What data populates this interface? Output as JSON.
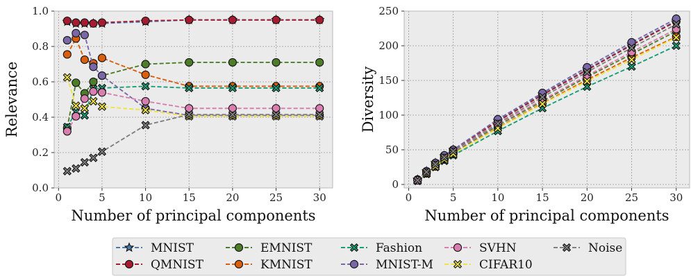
{
  "legend": {
    "entries": [
      {
        "label": "MNIST",
        "color": "#4a79aa",
        "marker": "star"
      },
      {
        "label": "QMNIST",
        "color": "#a51c30",
        "marker": "circle"
      },
      {
        "label": "EMNIST",
        "color": "#4e7d2a",
        "marker": "circle"
      },
      {
        "label": "KMNIST",
        "color": "#d95f0e",
        "marker": "circle"
      },
      {
        "label": "Fashion",
        "color": "#1b9e77",
        "marker": "x"
      },
      {
        "label": "MNIST-M",
        "color": "#7a68a6",
        "marker": "circle"
      },
      {
        "label": "SVHN",
        "color": "#d97fb0",
        "marker": "circle"
      },
      {
        "label": "CIFAR10",
        "color": "#f0e442",
        "marker": "x"
      },
      {
        "label": "Noise",
        "color": "#808080",
        "marker": "x"
      }
    ]
  },
  "chart_data": [
    {
      "type": "line",
      "xlabel": "Number of principal components",
      "ylabel": "Relevance",
      "xlim": [
        -0.5,
        31.5
      ],
      "ylim": [
        0.0,
        1.0
      ],
      "xticks": [
        0,
        5,
        10,
        15,
        20,
        25,
        30
      ],
      "yticks": [
        0.0,
        0.2,
        0.4,
        0.6,
        0.8,
        1.0
      ],
      "yticklabels": [
        "0.0",
        "0.2",
        "0.4",
        "0.6",
        "0.8",
        "1.0"
      ],
      "grid": true,
      "x": [
        1,
        2,
        3,
        4,
        5,
        10,
        15,
        20,
        25,
        30
      ],
      "series": [
        {
          "name": "MNIST",
          "values": [
            0.94,
            0.93,
            0.93,
            0.93,
            0.93,
            0.94,
            0.95,
            0.95,
            0.95,
            0.95
          ]
        },
        {
          "name": "QMNIST",
          "values": [
            0.945,
            0.935,
            0.935,
            0.93,
            0.935,
            0.945,
            0.95,
            0.95,
            0.95,
            0.95
          ]
        },
        {
          "name": "EMNIST",
          "values": [
            0.34,
            0.595,
            0.535,
            0.6,
            0.635,
            0.7,
            0.71,
            0.71,
            0.71,
            0.71
          ]
        },
        {
          "name": "KMNIST",
          "values": [
            0.755,
            0.845,
            0.725,
            0.705,
            0.735,
            0.64,
            0.575,
            0.575,
            0.575,
            0.575
          ]
        },
        {
          "name": "Fashion",
          "values": [
            0.345,
            0.43,
            0.41,
            0.56,
            0.565,
            0.575,
            0.565,
            0.565,
            0.565,
            0.565
          ]
        },
        {
          "name": "MNIST-M",
          "values": [
            0.835,
            0.875,
            0.865,
            0.685,
            0.635,
            0.45,
            0.41,
            0.41,
            0.41,
            0.41
          ]
        },
        {
          "name": "SVHN",
          "values": [
            0.32,
            0.405,
            0.505,
            0.545,
            0.54,
            0.49,
            0.45,
            0.45,
            0.45,
            0.45
          ]
        },
        {
          "name": "CIFAR10",
          "values": [
            0.625,
            0.465,
            0.45,
            0.49,
            0.46,
            0.44,
            0.405,
            0.405,
            0.405,
            0.405
          ]
        },
        {
          "name": "Noise",
          "values": [
            0.095,
            0.11,
            0.145,
            0.17,
            0.205,
            0.355,
            0.415,
            0.415,
            0.415,
            0.415
          ]
        }
      ]
    },
    {
      "type": "line",
      "xlabel": "Number of principal components",
      "ylabel": "Diversity",
      "xlim": [
        -0.5,
        31.5
      ],
      "ylim": [
        -5,
        250
      ],
      "xticks": [
        0,
        5,
        10,
        15,
        20,
        25,
        30
      ],
      "yticks": [
        0,
        50,
        100,
        150,
        200,
        250
      ],
      "yticklabels": [
        "0",
        "50",
        "100",
        "150",
        "200",
        "250"
      ],
      "grid": true,
      "x": [
        1,
        2,
        3,
        4,
        5,
        10,
        15,
        20,
        25,
        30
      ],
      "series": [
        {
          "name": "MNIST",
          "values": [
            7,
            19,
            31,
            41,
            50,
            92,
            130,
            166,
            202,
            236
          ]
        },
        {
          "name": "QMNIST",
          "values": [
            7,
            19,
            30,
            41,
            50,
            91,
            129,
            165,
            201,
            235
          ]
        },
        {
          "name": "EMNIST",
          "values": [
            6,
            17,
            28,
            38,
            46,
            85,
            120,
            155,
            188,
            221
          ]
        },
        {
          "name": "KMNIST",
          "values": [
            6,
            16,
            26,
            36,
            44,
            82,
            117,
            151,
            183,
            213
          ]
        },
        {
          "name": "Fashion",
          "values": [
            5,
            15,
            25,
            34,
            42,
            77,
            110,
            141,
            170,
            200
          ]
        },
        {
          "name": "MNIST-M",
          "values": [
            7,
            19,
            31,
            42,
            50,
            94,
            132,
            169,
            205,
            239
          ]
        },
        {
          "name": "SVHN",
          "values": [
            6,
            17,
            28,
            38,
            47,
            87,
            122,
            157,
            191,
            224
          ]
        },
        {
          "name": "CIFAR10",
          "values": [
            6,
            16,
            26,
            36,
            44,
            81,
            116,
            149,
            180,
            212
          ]
        },
        {
          "name": "Noise",
          "values": [
            6,
            18,
            29,
            39,
            48,
            88,
            126,
            162,
            197,
            231
          ]
        }
      ]
    }
  ]
}
